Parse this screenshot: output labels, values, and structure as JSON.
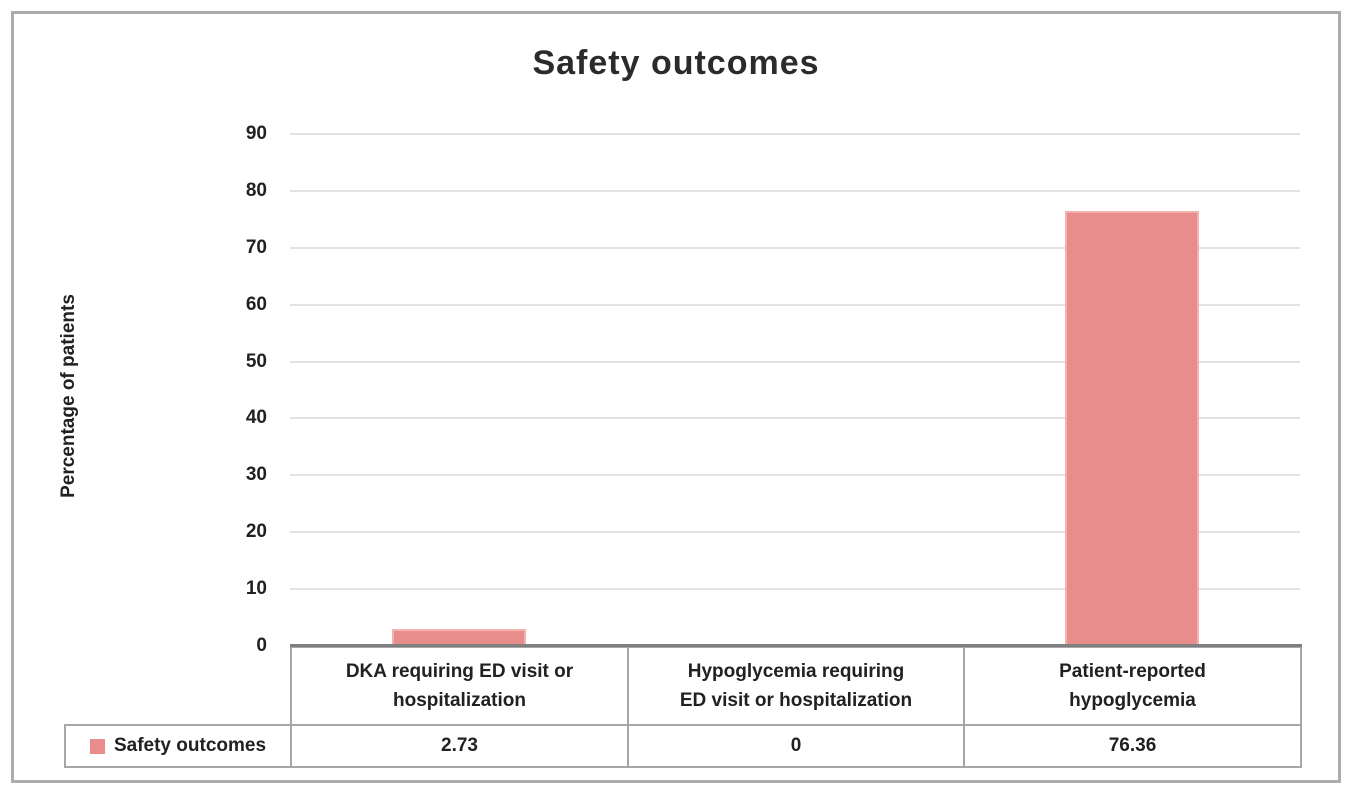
{
  "title": "Safety outcomes",
  "chart_data": {
    "type": "bar",
    "title": "Safety outcomes",
    "categories": [
      "DKA requiring ED visit or hospitalization",
      "Hypoglycemia requiring ED visit or hospitalization",
      "Patient-reported hypoglycemia"
    ],
    "series": [
      {
        "name": "Safety outcomes",
        "values": [
          2.73,
          0,
          76.36
        ]
      }
    ],
    "xlabel": "",
    "ylabel": "Percentage of patients",
    "ylim": [
      0,
      90
    ],
    "ytick_step": 10,
    "grid": true,
    "legend_position": "bottom-table",
    "bar_color": "#E88D8B",
    "bar_border_color": "#F4B2AF"
  },
  "table": {
    "legend_label": "Safety outcomes",
    "headers": [
      "DKA requiring ED visit or\nhospitalization",
      "Hypoglycemia requiring\nED visit or hospitalization",
      "Patient-reported\nhypoglycemia"
    ],
    "values": [
      "2.73",
      "0",
      "76.36"
    ]
  },
  "colors": {
    "frame_border": "#ACACAC",
    "table_border": "#A7A7A7",
    "axis_line": "#7F7F7F",
    "gridline": "#E2E2E2",
    "text": "#212121"
  }
}
